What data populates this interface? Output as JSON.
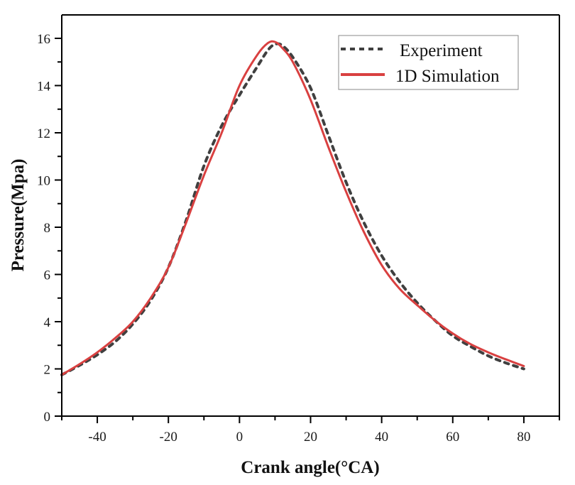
{
  "chart_data": {
    "type": "line",
    "title": "",
    "xlabel": "Crank angle(°CA)",
    "ylabel": "Pressure(Mpa)",
    "xlim": [
      -50,
      90
    ],
    "ylim": [
      0,
      17
    ],
    "xticks": [
      -40,
      -20,
      0,
      20,
      40,
      60,
      80
    ],
    "xtick_labels": [
      "-40",
      "-20",
      "0",
      "20",
      "40",
      "60",
      "80"
    ],
    "yticks": [
      0,
      2,
      4,
      6,
      8,
      10,
      12,
      14,
      16
    ],
    "ytick_labels": [
      "0",
      "2",
      "4",
      "6",
      "8",
      "10",
      "12",
      "14",
      "16"
    ],
    "grid": false,
    "legend_position": "top-right",
    "series": [
      {
        "name": "Experiment",
        "style": "dashed",
        "color": "#404040",
        "x": [
          -50,
          -45,
          -40,
          -35,
          -30,
          -25,
          -20,
          -15,
          -10,
          -5,
          0,
          5,
          8,
          10,
          12,
          15,
          20,
          25,
          30,
          35,
          40,
          45,
          50,
          55,
          60,
          65,
          70,
          75,
          80
        ],
        "y": [
          1.75,
          2.15,
          2.6,
          3.15,
          3.9,
          4.9,
          6.3,
          8.3,
          10.6,
          12.3,
          13.6,
          14.8,
          15.5,
          15.75,
          15.7,
          15.2,
          13.9,
          11.9,
          9.9,
          8.2,
          6.8,
          5.7,
          4.8,
          4.05,
          3.4,
          2.95,
          2.55,
          2.25,
          2.0
        ]
      },
      {
        "name": "1D Simulation",
        "style": "solid",
        "color": "#d94040",
        "x": [
          -50,
          -45,
          -40,
          -35,
          -30,
          -25,
          -20,
          -15,
          -10,
          -5,
          0,
          5,
          8,
          10,
          12,
          15,
          20,
          25,
          30,
          35,
          40,
          45,
          50,
          55,
          60,
          65,
          70,
          75,
          80
        ],
        "y": [
          1.75,
          2.2,
          2.7,
          3.3,
          4.0,
          5.0,
          6.3,
          8.2,
          10.2,
          12.0,
          14.0,
          15.3,
          15.8,
          15.85,
          15.6,
          15.0,
          13.4,
          11.4,
          9.5,
          7.8,
          6.4,
          5.4,
          4.7,
          4.05,
          3.5,
          3.05,
          2.7,
          2.4,
          2.12
        ]
      }
    ]
  }
}
